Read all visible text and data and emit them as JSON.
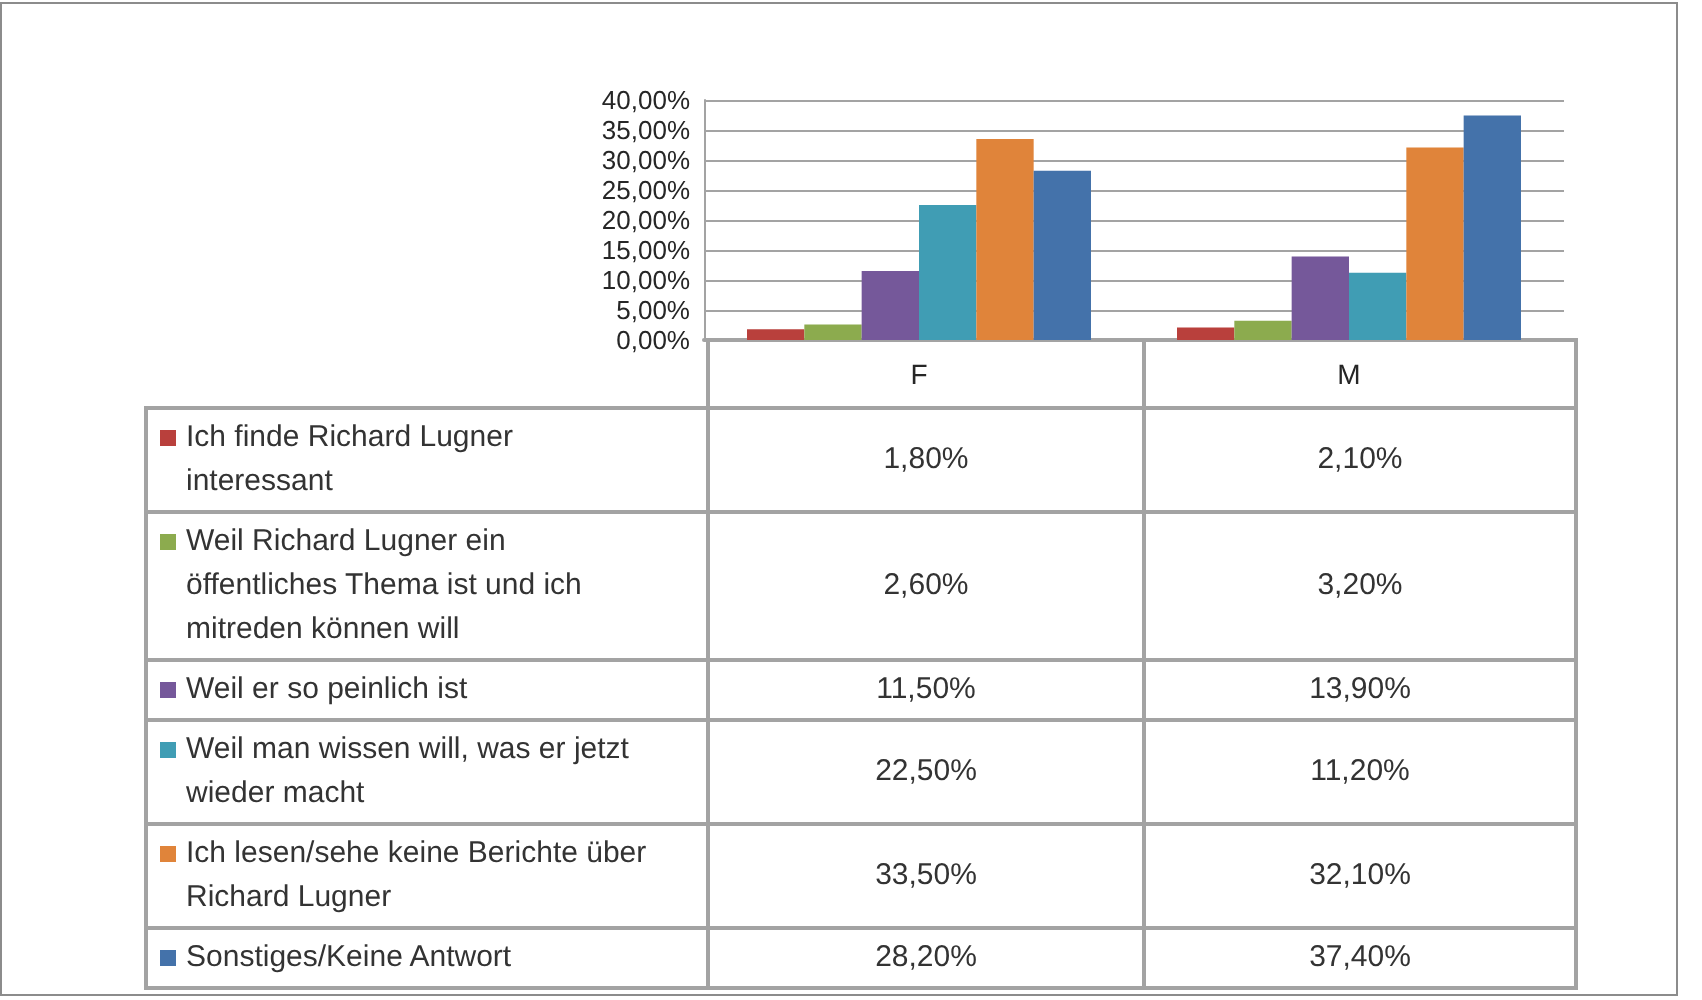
{
  "chart_data": {
    "type": "bar",
    "categories": [
      "F",
      "M"
    ],
    "series": [
      {
        "name": "Ich finde Richard Lugner interessant",
        "color": "#b9403c",
        "values": [
          1.8,
          2.1
        ],
        "value_labels": [
          "1,80%",
          "2,10%"
        ]
      },
      {
        "name": "Weil Richard Lugner ein öffentliches Thema ist und ich mitreden können will",
        "color": "#8cab4e",
        "values": [
          2.6,
          3.2
        ],
        "value_labels": [
          "2,60%",
          "3,20%"
        ]
      },
      {
        "name": "Weil er so peinlich ist",
        "color": "#75589a",
        "values": [
          11.5,
          13.9
        ],
        "value_labels": [
          "11,50%",
          "13,90%"
        ]
      },
      {
        "name": "Weil man wissen will, was er jetzt wieder macht",
        "color": "#409db4",
        "values": [
          22.5,
          11.2
        ],
        "value_labels": [
          "22,50%",
          "11,20%"
        ]
      },
      {
        "name": "Ich lesen/sehe keine Berichte über Richard Lugner",
        "color": "#e0843a",
        "values": [
          33.5,
          32.1
        ],
        "value_labels": [
          "33,50%",
          "32,10%"
        ]
      },
      {
        "name": "Sonstiges/Keine Antwort",
        "color": "#4472aa",
        "values": [
          28.2,
          37.4
        ],
        "value_labels": [
          "28,20%",
          "37,40%"
        ]
      }
    ],
    "ylim": [
      0,
      40
    ],
    "yticks": [
      {
        "value": 0,
        "label": "0,00%"
      },
      {
        "value": 5,
        "label": "5,00%"
      },
      {
        "value": 10,
        "label": "10,00%"
      },
      {
        "value": 15,
        "label": "15,00%"
      },
      {
        "value": 20,
        "label": "20,00%"
      },
      {
        "value": 25,
        "label": "25,00%"
      },
      {
        "value": 30,
        "label": "30,00%"
      },
      {
        "value": 35,
        "label": "35,00%"
      },
      {
        "value": 40,
        "label": "40,00%"
      }
    ],
    "grid": "y",
    "legend": "bottom left"
  }
}
